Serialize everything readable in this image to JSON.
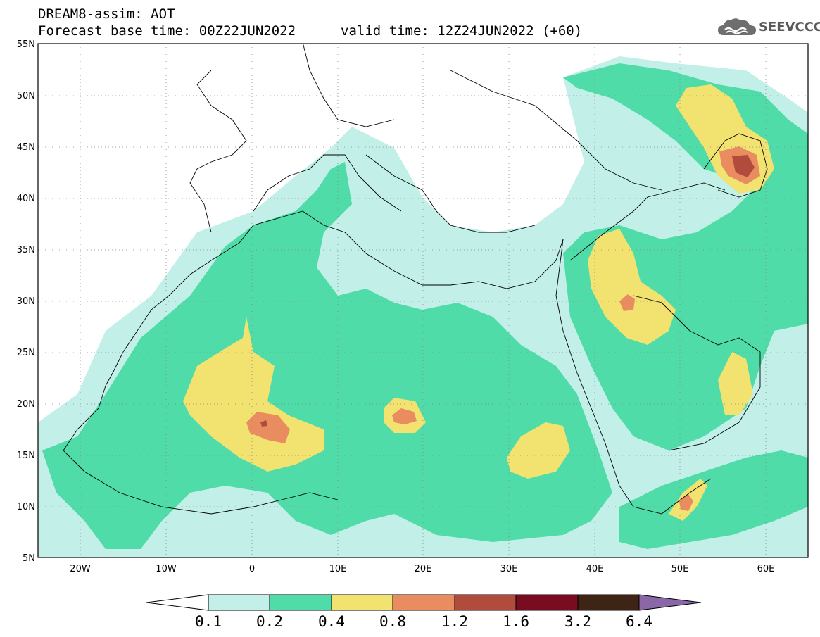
{
  "header": {
    "line1": "DREAM8-assim: AOT",
    "line2a": "Forecast base time: 00Z22JUN2022",
    "line2b": "valid time: 12Z24JUN2022 (+60)"
  },
  "logo": {
    "text": "SEEVCCC",
    "icon": "cloud-icon"
  },
  "map": {
    "lon_range": [
      -25,
      65
    ],
    "lat_range": [
      5,
      55
    ],
    "lat_ticks": [
      "55N",
      "50N",
      "45N",
      "40N",
      "35N",
      "30N",
      "25N",
      "20N",
      "15N",
      "10N",
      "5N"
    ],
    "lon_ticks": [
      "20W",
      "10W",
      "0",
      "10E",
      "20E",
      "30E",
      "40E",
      "50E",
      "60E"
    ],
    "grid": "dotted"
  },
  "colorbar": {
    "labels": [
      "0.1",
      "0.2",
      "0.4",
      "0.8",
      "1.2",
      "1.6",
      "3.2",
      "6.4"
    ],
    "colors": [
      "#c2f0e8",
      "#4fdca8",
      "#f2e270",
      "#e98c60",
      "#b14c3c",
      "#7a0c22",
      "#3e2414",
      "#8a68a8"
    ]
  }
}
